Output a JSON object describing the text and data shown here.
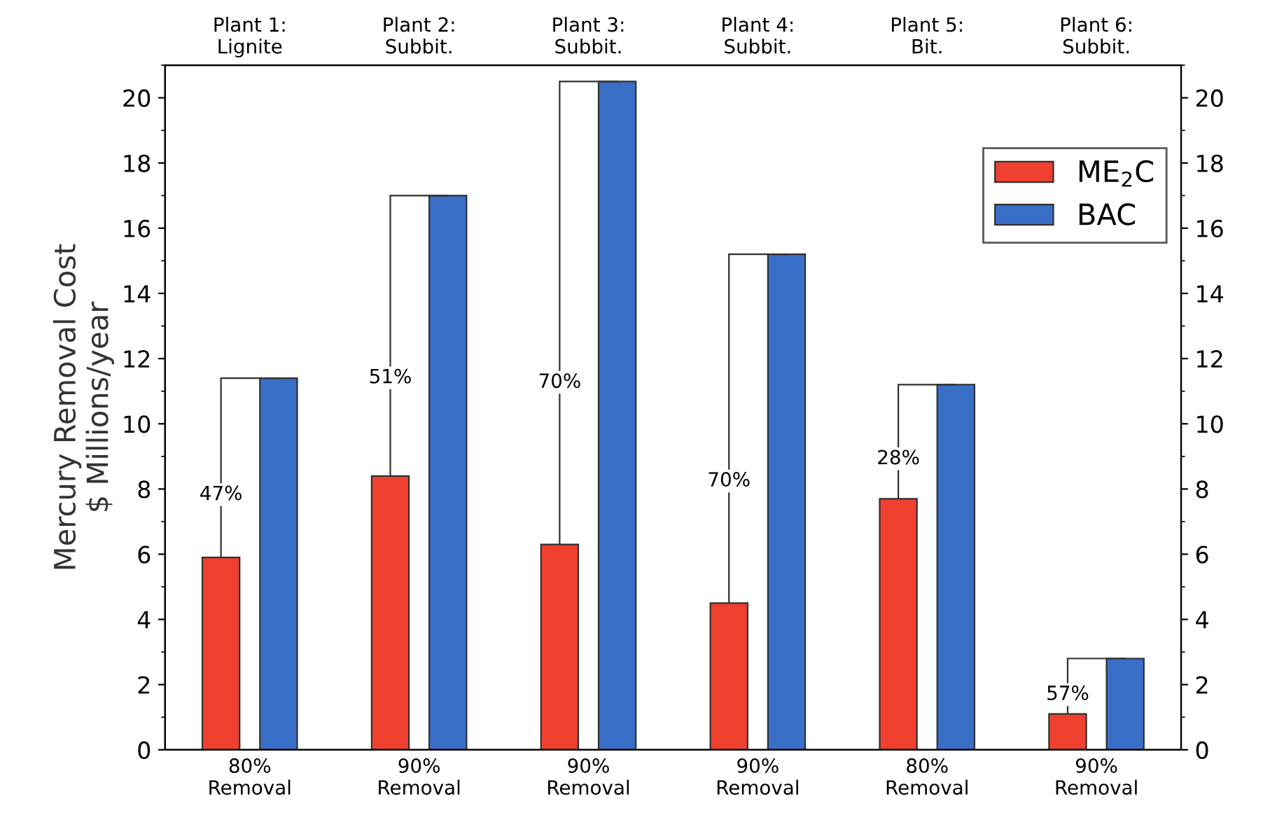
{
  "chart_data": {
    "type": "bar",
    "ylabel": "Mercury Removal Cost\n$ Millions/year",
    "categories": [
      "Plant 1:\nLignite",
      "Plant 2:\nSubbit.",
      "Plant 3:\nSubbit.",
      "Plant 4:\nSubbit.",
      "Plant 5:\nBit.",
      "Plant 6:\nSubbit."
    ],
    "series": [
      {
        "name": "ME$_{2}$C",
        "color": "#f04030",
        "values": [
          5.9,
          8.4,
          6.3,
          4.5,
          7.7,
          1.1
        ],
        "errors": [
          [
            5.9,
            11.4
          ],
          [
            8.4,
            17.0
          ],
          [
            6.3,
            20.5
          ],
          [
            4.5,
            15.2
          ],
          [
            7.7,
            11.2
          ],
          [
            1.1,
            2.8
          ]
        ]
      },
      {
        "name": "BAC",
        "color": "#3a6fc8",
        "values": [
          11.4,
          17.0,
          20.5,
          15.2,
          11.2,
          2.8
        ]
      }
    ],
    "annotations": [
      "80%\nRemoval",
      "90%\nRemoval",
      "90%\nRemoval",
      "90%\nRemoval",
      "80%\nRemoval",
      "90%\nRemoval",
      "47%",
      "51%",
      "70%",
      "70%",
      "28%",
      "57%"
    ],
    "ylim": [
      0,
      21
    ],
    "yticks": [
      0,
      2,
      4,
      6,
      8,
      10,
      12,
      14,
      16,
      18,
      20
    ],
    "y2lim": [
      0,
      21
    ],
    "y2ticks": [
      0,
      2,
      4,
      6,
      8,
      10,
      12,
      14,
      16,
      18,
      20
    ],
    "legend": "top right",
    "grid": false
  }
}
